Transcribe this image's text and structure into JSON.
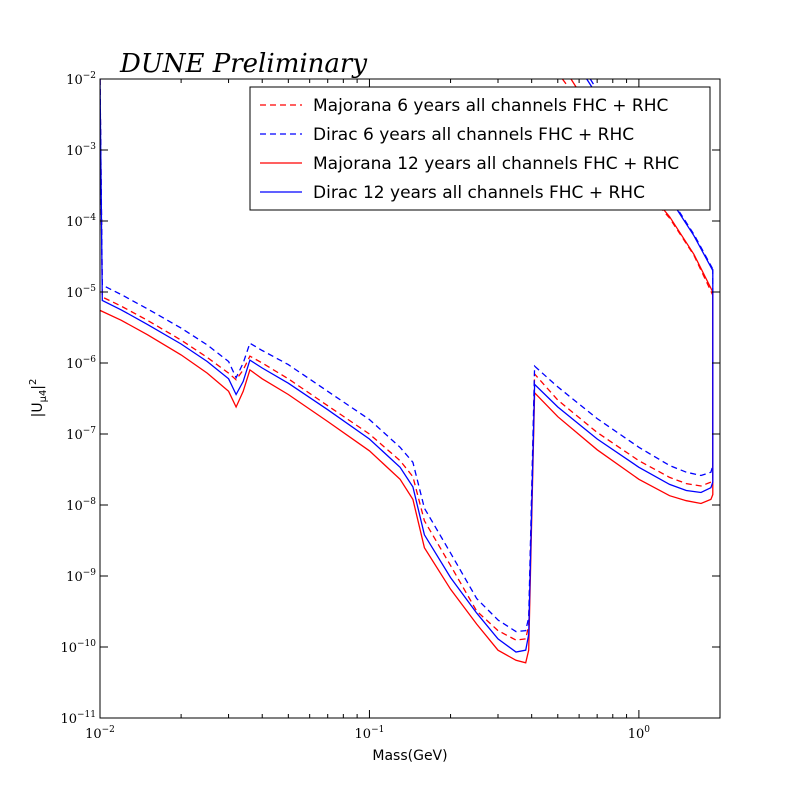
{
  "chart_data": {
    "type": "line",
    "title": "DUNE Preliminary",
    "xlabel": "Mass(GeV)",
    "ylabel": "|U_{μ4}|²",
    "x_scale": "log",
    "y_scale": "log",
    "xlim": [
      0.01,
      2.0
    ],
    "ylim": [
      1e-11,
      0.01
    ],
    "grid": false,
    "legend_position": "top-right",
    "x_ticks": [
      {
        "value": 0.01,
        "base": "10",
        "exp": "−2"
      },
      {
        "value": 0.1,
        "base": "10",
        "exp": "−1"
      },
      {
        "value": 1,
        "base": "10",
        "exp": "0"
      }
    ],
    "y_ticks": [
      {
        "value": 1e-11,
        "base": "10",
        "exp": "−11"
      },
      {
        "value": 1e-10,
        "base": "10",
        "exp": "−10"
      },
      {
        "value": 1e-09,
        "base": "10",
        "exp": "−9"
      },
      {
        "value": 1e-08,
        "base": "10",
        "exp": "−8"
      },
      {
        "value": 1e-07,
        "base": "10",
        "exp": "−7"
      },
      {
        "value": 1e-06,
        "base": "10",
        "exp": "−6"
      },
      {
        "value": 1e-05,
        "base": "10",
        "exp": "−5"
      },
      {
        "value": 0.0001,
        "base": "10",
        "exp": "−4"
      },
      {
        "value": 0.001,
        "base": "10",
        "exp": "−3"
      },
      {
        "value": 0.01,
        "base": "10",
        "exp": "−2"
      }
    ],
    "series": [
      {
        "name": "Majorana 6 years all channels FHC + RHC",
        "color": "#ff0000",
        "style": "dashed",
        "segments": [
          {
            "x": [
              0.01,
              0.0102,
              0.012,
              0.015,
              0.02,
              0.025,
              0.03,
              0.032,
              0.034,
              0.036,
              0.04,
              0.05,
              0.07,
              0.1,
              0.13,
              0.145,
              0.16,
              0.2,
              0.25,
              0.3,
              0.35,
              0.38,
              0.39,
              0.41,
              0.5,
              0.7,
              1.0,
              1.3,
              1.5,
              1.7,
              1.85,
              1.88,
              1.88
            ],
            "y": [
              0.01,
              8.5e-06,
              6.3e-06,
              4e-06,
              2.1e-06,
              1.2e-06,
              7.2e-07,
              5.8e-07,
              8e-07,
              1.25e-06,
              1e-06,
              6e-07,
              2.5e-07,
              1e-07,
              4.2e-08,
              2.5e-08,
              6e-09,
              1.4e-09,
              3.2e-10,
              1.7e-10,
              1.25e-10,
              1.3e-10,
              2e-10,
              7e-07,
              3e-07,
              1.05e-07,
              4.2e-08,
              2.45e-08,
              2e-08,
              1.85e-08,
              2.1e-08,
              2.4e-08,
              9e-06
            ]
          },
          {
            "x": [
              0.52,
              0.7,
              1.0,
              1.3,
              1.6,
              1.88
            ],
            "y": [
              0.01,
              0.0022,
              0.00035,
              0.00011,
              3.3e-05,
              9e-06
            ]
          }
        ]
      },
      {
        "name": "Dirac 6 years all channels FHC + RHC",
        "color": "#0000ff",
        "style": "dashed",
        "segments": [
          {
            "x": [
              0.01,
              0.0102,
              0.012,
              0.015,
              0.02,
              0.025,
              0.03,
              0.032,
              0.034,
              0.036,
              0.04,
              0.05,
              0.07,
              0.1,
              0.13,
              0.145,
              0.16,
              0.2,
              0.25,
              0.3,
              0.35,
              0.38,
              0.39,
              0.41,
              0.5,
              0.7,
              1.0,
              1.3,
              1.5,
              1.7,
              1.85,
              1.88,
              1.88
            ],
            "y": [
              0.01,
              1.25e-05,
              9.2e-06,
              5.8e-06,
              3.1e-06,
              1.8e-06,
              1.05e-06,
              6.2e-07,
              1e-06,
              1.9e-06,
              1.5e-06,
              9.5e-07,
              4e-07,
              1.6e-07,
              6.5e-08,
              4e-08,
              9e-09,
              2.1e-09,
              4.8e-10,
              2.4e-10,
              1.65e-10,
              1.7e-10,
              2.6e-10,
              9e-07,
              4.6e-07,
              1.65e-07,
              6.5e-08,
              3.6e-08,
              2.9e-08,
              2.6e-08,
              2.9e-08,
              3.6e-08,
              2.1e-05
            ]
          },
          {
            "x": [
              0.66,
              0.8,
              1.0,
              1.3,
              1.6,
              1.88
            ],
            "y": [
              0.01,
              0.003,
              0.0008,
              0.00022,
              6.5e-05,
              2.1e-05
            ]
          }
        ]
      },
      {
        "name": "Majorana 12 years all channels FHC + RHC",
        "color": "#ff0000",
        "style": "solid",
        "segments": [
          {
            "x": [
              0.01,
              0.012,
              0.015,
              0.02,
              0.025,
              0.03,
              0.032,
              0.034,
              0.036,
              0.04,
              0.05,
              0.07,
              0.1,
              0.13,
              0.145,
              0.16,
              0.2,
              0.25,
              0.3,
              0.35,
              0.38,
              0.39,
              0.41,
              0.5,
              0.7,
              1.0,
              1.3,
              1.5,
              1.7,
              1.85,
              1.88,
              1.88
            ],
            "y": [
              5.5e-06,
              4e-06,
              2.5e-06,
              1.3e-06,
              7.2e-07,
              4e-07,
              2.4e-07,
              4e-07,
              8e-07,
              6e-07,
              3.6e-07,
              1.5e-07,
              5.8e-08,
              2.3e-08,
              1.2e-08,
              2.5e-09,
              6.5e-10,
              2.1e-10,
              9e-11,
              6.5e-11,
              6e-11,
              9e-11,
              3.8e-07,
              1.75e-07,
              6e-08,
              2.3e-08,
              1.35e-08,
              1.15e-08,
              1.05e-08,
              1.2e-08,
              1.4e-08,
              1e-05
            ]
          },
          {
            "x": [
              0.56,
              0.7,
              1.0,
              1.3,
              1.6,
              1.88
            ],
            "y": [
              0.01,
              0.0026,
              0.00038,
              0.000115,
              3.4e-05,
              1e-05
            ]
          }
        ]
      },
      {
        "name": "Dirac 12 years all channels FHC + RHC",
        "color": "#0000ff",
        "style": "solid",
        "segments": [
          {
            "x": [
              0.01,
              0.0102,
              0.012,
              0.015,
              0.02,
              0.025,
              0.03,
              0.032,
              0.034,
              0.036,
              0.04,
              0.05,
              0.07,
              0.1,
              0.13,
              0.145,
              0.16,
              0.2,
              0.25,
              0.3,
              0.35,
              0.38,
              0.39,
              0.41,
              0.5,
              0.7,
              1.0,
              1.3,
              1.5,
              1.7,
              1.85,
              1.88,
              1.88
            ],
            "y": [
              0.01,
              7.6e-06,
              5.6e-06,
              3.5e-06,
              1.85e-06,
              1.05e-06,
              6e-07,
              3.6e-07,
              5.5e-07,
              1.1e-06,
              8.5e-07,
              5.2e-07,
              2.2e-07,
              8.5e-08,
              3.4e-08,
              1.8e-08,
              3.8e-09,
              9.5e-10,
              3e-10,
              1.3e-10,
              8.5e-11,
              9e-11,
              1.5e-10,
              5e-07,
              2.4e-07,
              8.5e-08,
              3.4e-08,
              1.95e-08,
              1.6e-08,
              1.5e-08,
              1.75e-08,
              2.1e-08,
              2e-05
            ]
          },
          {
            "x": [
              0.64,
              0.8,
              1.0,
              1.3,
              1.6,
              1.88
            ],
            "y": [
              0.01,
              0.0027,
              0.00075,
              0.00021,
              6.2e-05,
              2e-05
            ]
          }
        ]
      }
    ]
  }
}
